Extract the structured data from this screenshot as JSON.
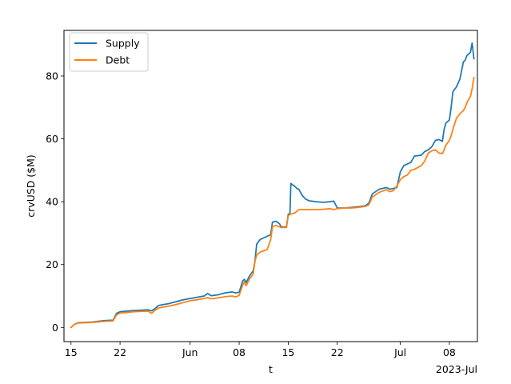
{
  "chart_data": {
    "type": "line",
    "title": "",
    "xlabel": "t",
    "ylabel": "crvUSD ($M)",
    "x_offset_label": "2023-Jul",
    "xlim": [
      "2023-05-14",
      "2023-07-12"
    ],
    "ylim": [
      -4.5,
      94.5
    ],
    "x_ticks": [
      {
        "date": "2023-05-15",
        "label": "15"
      },
      {
        "date": "2023-05-22",
        "label": "22"
      },
      {
        "date": "2023-06-01",
        "label": "Jun"
      },
      {
        "date": "2023-06-08",
        "label": "08"
      },
      {
        "date": "2023-06-15",
        "label": "15"
      },
      {
        "date": "2023-06-22",
        "label": "22"
      },
      {
        "date": "2023-07-01",
        "label": "Jul"
      },
      {
        "date": "2023-07-08",
        "label": "08"
      }
    ],
    "y_ticks": [
      {
        "value": 0,
        "label": "0"
      },
      {
        "value": 20,
        "label": "20"
      },
      {
        "value": 40,
        "label": "40"
      },
      {
        "value": 60,
        "label": "60"
      },
      {
        "value": 80,
        "label": "80"
      }
    ],
    "grid": false,
    "legend_position": "upper-left",
    "series": [
      {
        "name": "Supply",
        "color": "#1f77b4",
        "points": [
          [
            "2023-05-15",
            0
          ],
          [
            "2023-05-15T12:00",
            1.0
          ],
          [
            "2023-05-16",
            1.5
          ],
          [
            "2023-05-18",
            1.7
          ],
          [
            "2023-05-19",
            2.0
          ],
          [
            "2023-05-20",
            2.2
          ],
          [
            "2023-05-21",
            2.3
          ],
          [
            "2023-05-21T12:00",
            4.5
          ],
          [
            "2023-05-22",
            5.0
          ],
          [
            "2023-05-23",
            5.2
          ],
          [
            "2023-05-24",
            5.4
          ],
          [
            "2023-05-25",
            5.5
          ],
          [
            "2023-05-26",
            5.6
          ],
          [
            "2023-05-26T12:00",
            5.3
          ],
          [
            "2023-05-27",
            6.0
          ],
          [
            "2023-05-27T12:00",
            7.0
          ],
          [
            "2023-05-28",
            7.2
          ],
          [
            "2023-05-29",
            7.6
          ],
          [
            "2023-05-30",
            8.2
          ],
          [
            "2023-05-31",
            8.8
          ],
          [
            "2023-06-01",
            9.2
          ],
          [
            "2023-06-02",
            9.6
          ],
          [
            "2023-06-03",
            10.0
          ],
          [
            "2023-06-03T12:00",
            10.8
          ],
          [
            "2023-06-04",
            10.1
          ],
          [
            "2023-06-05",
            10.4
          ],
          [
            "2023-06-06",
            11.0
          ],
          [
            "2023-06-07",
            11.3
          ],
          [
            "2023-06-07T12:00",
            11.0
          ],
          [
            "2023-06-08",
            11.2
          ],
          [
            "2023-06-08T12:00",
            14.8
          ],
          [
            "2023-06-08T18:00",
            15.3
          ],
          [
            "2023-06-09",
            14.3
          ],
          [
            "2023-06-09T12:00",
            16.5
          ],
          [
            "2023-06-10",
            18.0
          ],
          [
            "2023-06-10T06:00",
            21.0
          ],
          [
            "2023-06-10T12:00",
            26.5
          ],
          [
            "2023-06-11",
            28.0
          ],
          [
            "2023-06-12",
            29.0
          ],
          [
            "2023-06-12T12:00",
            29.5
          ],
          [
            "2023-06-12T18:00",
            33.5
          ],
          [
            "2023-06-13T06:00",
            33.8
          ],
          [
            "2023-06-13T18:00",
            33.0
          ],
          [
            "2023-06-14",
            32.0
          ],
          [
            "2023-06-14T18:00",
            32.0
          ],
          [
            "2023-06-15",
            36.0
          ],
          [
            "2023-06-15T06:00",
            36.2
          ],
          [
            "2023-06-15T09:00",
            45.8
          ],
          [
            "2023-06-16",
            44.8
          ],
          [
            "2023-06-16T06:00",
            44.2
          ],
          [
            "2023-06-16T12:00",
            44.0
          ],
          [
            "2023-06-17",
            42.0
          ],
          [
            "2023-06-17T12:00",
            40.8
          ],
          [
            "2023-06-18",
            40.3
          ],
          [
            "2023-06-19",
            40.0
          ],
          [
            "2023-06-20",
            39.8
          ],
          [
            "2023-06-21",
            40.0
          ],
          [
            "2023-06-21T12:00",
            40.2
          ],
          [
            "2023-06-22",
            38.0
          ],
          [
            "2023-06-23",
            38.0
          ],
          [
            "2023-06-24",
            38.2
          ],
          [
            "2023-06-25",
            38.4
          ],
          [
            "2023-06-26",
            38.7
          ],
          [
            "2023-06-26T12:00",
            39.5
          ],
          [
            "2023-06-27",
            42.5
          ],
          [
            "2023-06-28",
            44.0
          ],
          [
            "2023-06-29",
            44.5
          ],
          [
            "2023-06-29T12:00",
            44.0
          ],
          [
            "2023-06-30",
            44.2
          ],
          [
            "2023-06-30T12:00",
            44.5
          ],
          [
            "2023-07-01",
            49.5
          ],
          [
            "2023-07-01T12:00",
            51.5
          ],
          [
            "2023-07-02",
            52.0
          ],
          [
            "2023-07-02T12:00",
            52.5
          ],
          [
            "2023-07-03",
            54.5
          ],
          [
            "2023-07-04",
            54.8
          ],
          [
            "2023-07-04T12:00",
            56.0
          ],
          [
            "2023-07-05",
            56.5
          ],
          [
            "2023-07-05T12:00",
            57.5
          ],
          [
            "2023-07-06",
            59.5
          ],
          [
            "2023-07-06T12:00",
            59.8
          ],
          [
            "2023-07-07",
            59.2
          ],
          [
            "2023-07-07T06:00",
            63.0
          ],
          [
            "2023-07-07T12:00",
            65.0
          ],
          [
            "2023-07-08",
            66.0
          ],
          [
            "2023-07-08T06:00",
            70.0
          ],
          [
            "2023-07-08T12:00",
            75.0
          ],
          [
            "2023-07-09",
            76.5
          ],
          [
            "2023-07-09T12:00",
            79.0
          ],
          [
            "2023-07-10",
            84.5
          ],
          [
            "2023-07-10T06:00",
            85.0
          ],
          [
            "2023-07-10T12:00",
            86.5
          ],
          [
            "2023-07-11",
            87.5
          ],
          [
            "2023-07-11T06:00",
            90.5
          ],
          [
            "2023-07-11T12:00",
            85.5
          ]
        ]
      },
      {
        "name": "Debt",
        "color": "#ff7f0e",
        "points": [
          [
            "2023-05-15",
            0
          ],
          [
            "2023-05-15T12:00",
            1.0
          ],
          [
            "2023-05-16",
            1.4
          ],
          [
            "2023-05-18",
            1.6
          ],
          [
            "2023-05-19",
            1.8
          ],
          [
            "2023-05-20",
            2.0
          ],
          [
            "2023-05-21",
            2.1
          ],
          [
            "2023-05-21T12:00",
            4.0
          ],
          [
            "2023-05-22",
            4.6
          ],
          [
            "2023-05-23",
            4.8
          ],
          [
            "2023-05-24",
            5.0
          ],
          [
            "2023-05-25",
            5.1
          ],
          [
            "2023-05-26",
            5.2
          ],
          [
            "2023-05-26T12:00",
            4.5
          ],
          [
            "2023-05-27",
            5.5
          ],
          [
            "2023-05-27T12:00",
            6.2
          ],
          [
            "2023-05-28",
            6.4
          ],
          [
            "2023-05-29",
            6.8
          ],
          [
            "2023-05-30",
            7.3
          ],
          [
            "2023-05-31",
            7.9
          ],
          [
            "2023-06-01",
            8.5
          ],
          [
            "2023-06-02",
            8.8
          ],
          [
            "2023-06-03",
            9.2
          ],
          [
            "2023-06-03T12:00",
            9.5
          ],
          [
            "2023-06-04",
            9.1
          ],
          [
            "2023-06-05",
            9.4
          ],
          [
            "2023-06-06",
            9.8
          ],
          [
            "2023-06-07",
            10.0
          ],
          [
            "2023-06-07T12:00",
            9.7
          ],
          [
            "2023-06-08",
            10.2
          ],
          [
            "2023-06-08T12:00",
            13.5
          ],
          [
            "2023-06-08T18:00",
            14.5
          ],
          [
            "2023-06-09",
            13.3
          ],
          [
            "2023-06-09T12:00",
            15.5
          ],
          [
            "2023-06-10",
            17.0
          ],
          [
            "2023-06-10T06:00",
            21.0
          ],
          [
            "2023-06-10T12:00",
            23.0
          ],
          [
            "2023-06-11",
            24.0
          ],
          [
            "2023-06-12",
            24.8
          ],
          [
            "2023-06-12T12:00",
            28.0
          ],
          [
            "2023-06-12T18:00",
            32.0
          ],
          [
            "2023-06-13T06:00",
            32.5
          ],
          [
            "2023-06-13T18:00",
            32.0
          ],
          [
            "2023-06-14",
            31.8
          ],
          [
            "2023-06-14T18:00",
            31.8
          ],
          [
            "2023-06-15",
            35.5
          ],
          [
            "2023-06-15T06:00",
            36.0
          ],
          [
            "2023-06-15T09:00",
            36.0
          ],
          [
            "2023-06-16",
            36.5
          ],
          [
            "2023-06-16T06:00",
            37.0
          ],
          [
            "2023-06-16T12:00",
            37.5
          ],
          [
            "2023-06-17",
            37.5
          ],
          [
            "2023-06-17T12:00",
            37.5
          ],
          [
            "2023-06-18",
            37.5
          ],
          [
            "2023-06-19",
            37.5
          ],
          [
            "2023-06-20",
            37.6
          ],
          [
            "2023-06-21",
            37.8
          ],
          [
            "2023-06-21T12:00",
            37.5
          ],
          [
            "2023-06-22",
            37.8
          ],
          [
            "2023-06-23",
            38.0
          ],
          [
            "2023-06-24",
            38.0
          ],
          [
            "2023-06-25",
            38.2
          ],
          [
            "2023-06-26",
            38.5
          ],
          [
            "2023-06-26T12:00",
            39.0
          ],
          [
            "2023-06-27",
            41.5
          ],
          [
            "2023-06-28",
            43.0
          ],
          [
            "2023-06-29",
            43.8
          ],
          [
            "2023-06-29T12:00",
            43.2
          ],
          [
            "2023-06-30",
            43.5
          ],
          [
            "2023-06-30T12:00",
            45.0
          ],
          [
            "2023-07-01",
            47.0
          ],
          [
            "2023-07-01T12:00",
            48.0
          ],
          [
            "2023-07-02",
            48.5
          ],
          [
            "2023-07-02T12:00",
            50.0
          ],
          [
            "2023-07-03",
            50.3
          ],
          [
            "2023-07-04",
            51.5
          ],
          [
            "2023-07-04T12:00",
            53.0
          ],
          [
            "2023-07-05",
            55.5
          ],
          [
            "2023-07-05T12:00",
            56.2
          ],
          [
            "2023-07-06",
            56.5
          ],
          [
            "2023-07-06T12:00",
            55.5
          ],
          [
            "2023-07-07",
            55.3
          ],
          [
            "2023-07-07T06:00",
            56.5
          ],
          [
            "2023-07-07T12:00",
            58.0
          ],
          [
            "2023-07-08",
            59.5
          ],
          [
            "2023-07-08T06:00",
            61.0
          ],
          [
            "2023-07-08T12:00",
            63.0
          ],
          [
            "2023-07-09",
            66.5
          ],
          [
            "2023-07-09T12:00",
            68.0
          ],
          [
            "2023-07-10",
            69.0
          ],
          [
            "2023-07-10T06:00",
            70.0
          ],
          [
            "2023-07-10T12:00",
            71.5
          ],
          [
            "2023-07-11",
            73.5
          ],
          [
            "2023-07-11T06:00",
            76.0
          ],
          [
            "2023-07-11T12:00",
            79.5
          ]
        ]
      }
    ]
  }
}
